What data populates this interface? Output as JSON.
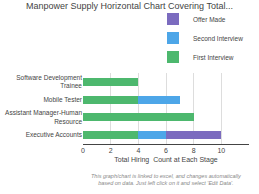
{
  "chart_data": {
    "type": "bar",
    "title": "Manpower Supply Horizontal Chart Covering Total...",
    "orientation": "horizontal",
    "stacked": true,
    "categories": [
      "Software Development\nTrainee",
      "Mobile Tester",
      "Assistant Manager-Human\nResource",
      "Executive Accounts"
    ],
    "series": [
      {
        "name": "First Interview",
        "color": "#4db86e",
        "values": [
          4,
          4,
          8,
          4
        ]
      },
      {
        "name": "Second Interview",
        "color": "#4da6e8",
        "values": [
          0,
          3,
          0,
          2
        ]
      },
      {
        "name": "Offer Made",
        "color": "#7b6bbf",
        "values": [
          0,
          0,
          0,
          4
        ]
      }
    ],
    "xlabel": "Total Hiring  Count at Each Stage",
    "xlim": [
      0,
      12
    ],
    "xticks": [
      0,
      2,
      4,
      6,
      8,
      10
    ],
    "grid": true,
    "legend": "upper right",
    "annotations": [
      "This graph/chart is linked to excel, and changes automatically based on data. Just left click on it and select 'Edit Data'."
    ]
  }
}
